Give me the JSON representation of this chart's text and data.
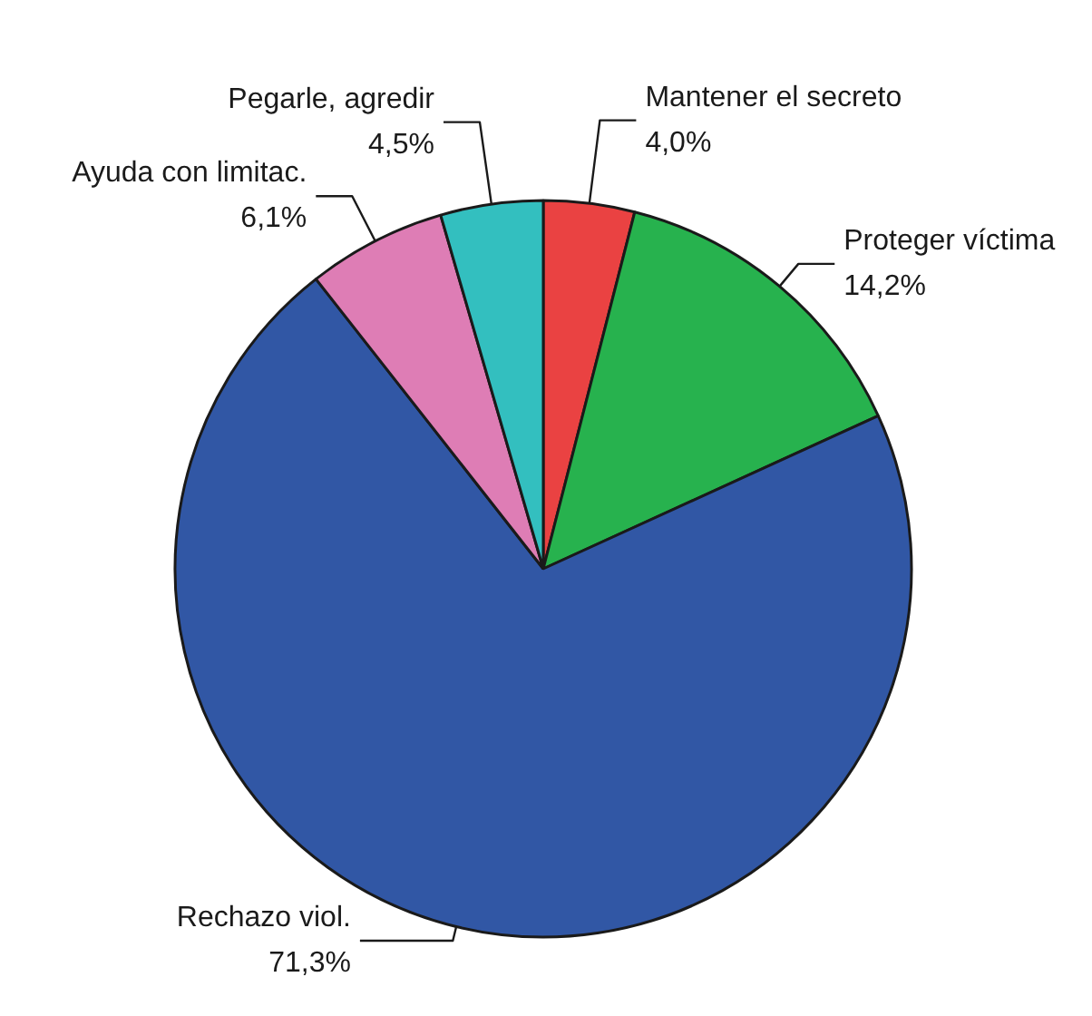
{
  "chart_data": {
    "type": "pie",
    "categories": [
      "Mantener el secreto",
      "Proteger víctima",
      "Rechazo viol.",
      "Ayuda con limitac.",
      "Pegarle, agredir"
    ],
    "values": [
      4.0,
      14.2,
      71.3,
      6.1,
      4.5
    ],
    "colors": [
      "#ea4242",
      "#27b24e",
      "#3157a5",
      "#de7db5",
      "#33bfbf"
    ],
    "value_labels": [
      "4,0%",
      "14,2%",
      "71,3%",
      "6,1%",
      "4,5%"
    ]
  }
}
